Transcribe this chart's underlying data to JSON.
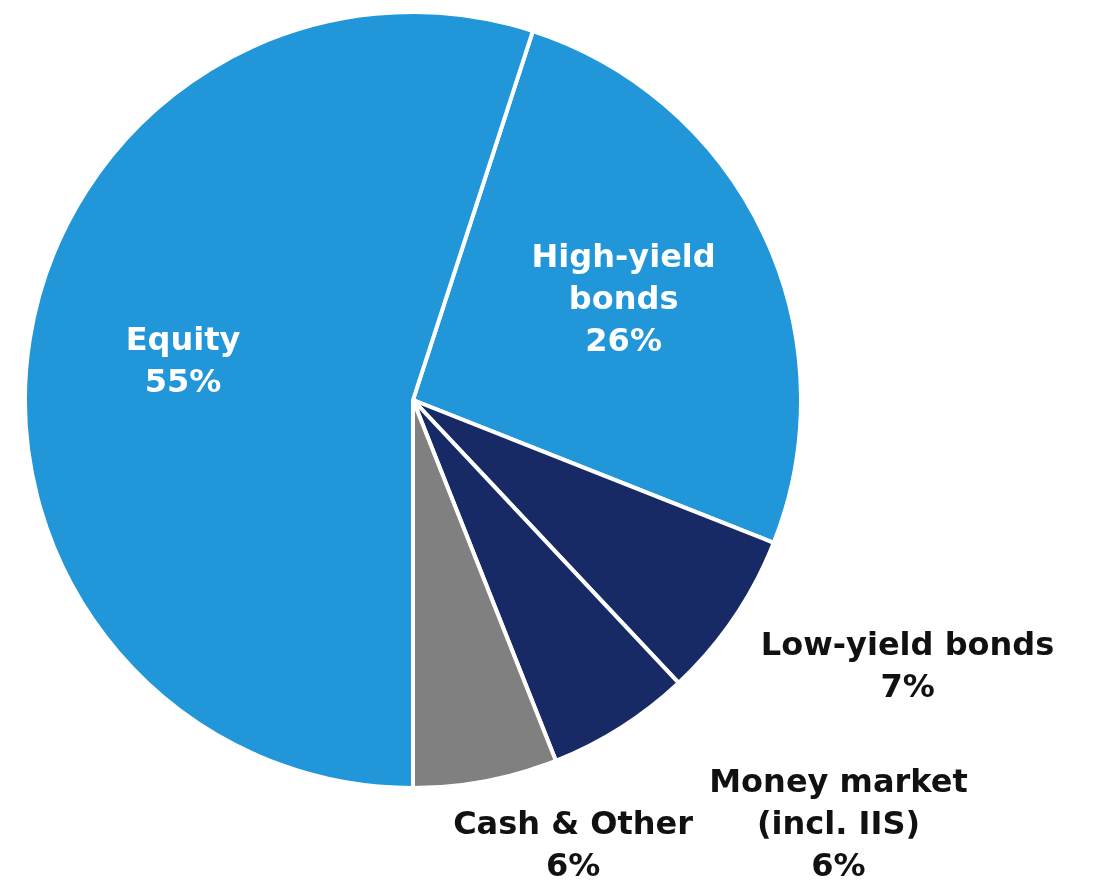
{
  "chart_data": {
    "type": "pie",
    "categories": [
      "High-yield bonds",
      "Low-yield bonds",
      "Money market (incl. IIS)",
      "Cash & Other",
      "Equity"
    ],
    "values": [
      26,
      7,
      6,
      6,
      55
    ],
    "colors": [
      "#2196d8",
      "#172a66",
      "#172a66",
      "#808080",
      "#2196d8"
    ],
    "value_labels": [
      "26%",
      "7%",
      "6%",
      "6%",
      "55%"
    ]
  }
}
